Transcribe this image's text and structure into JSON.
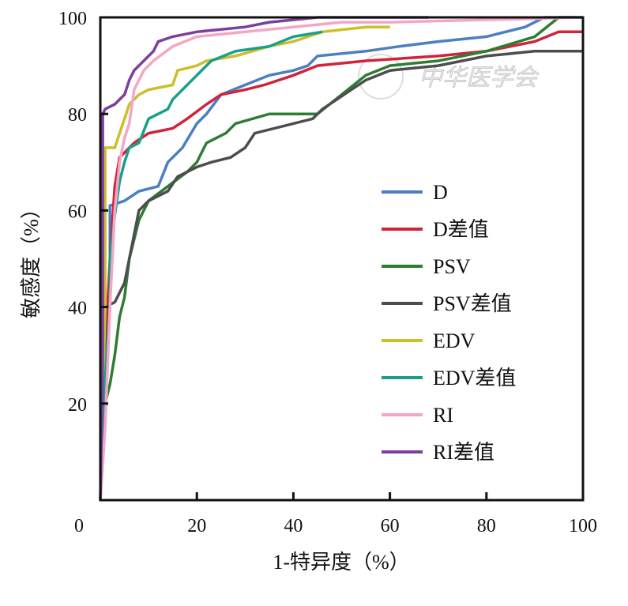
{
  "chart_data": {
    "type": "line",
    "title": "",
    "xlabel": "1-特异度（%）",
    "ylabel": "敏感度（%）",
    "xlim": [
      0,
      100
    ],
    "ylim": [
      0,
      100
    ],
    "xticks": [
      "0",
      "20",
      "40",
      "60",
      "80",
      "100"
    ],
    "yticks": [
      "20",
      "40",
      "60",
      "80",
      "100"
    ],
    "xtick_values": [
      0,
      20,
      40,
      60,
      80,
      100
    ],
    "ytick_values": [
      20,
      40,
      60,
      80,
      100
    ],
    "grid": false,
    "legend_position": "bottom-right",
    "watermark": "中华医学会",
    "series": [
      {
        "name": "D",
        "color": "#4a7fc1",
        "points": [
          [
            0,
            0
          ],
          [
            1,
            20
          ],
          [
            2,
            40
          ],
          [
            2,
            61
          ],
          [
            5,
            62
          ],
          [
            8,
            64
          ],
          [
            12,
            65
          ],
          [
            14,
            70
          ],
          [
            17,
            73
          ],
          [
            20,
            78
          ],
          [
            22,
            80
          ],
          [
            25,
            84
          ],
          [
            30,
            86
          ],
          [
            35,
            88
          ],
          [
            40,
            89
          ],
          [
            43,
            90
          ],
          [
            45,
            92
          ],
          [
            55,
            93
          ],
          [
            62,
            94
          ],
          [
            70,
            95
          ],
          [
            80,
            96
          ],
          [
            88,
            98
          ],
          [
            92,
            100
          ],
          [
            100,
            100
          ]
        ]
      },
      {
        "name": "D差值",
        "color": "#d0243a",
        "points": [
          [
            0,
            0
          ],
          [
            1,
            30
          ],
          [
            2,
            50
          ],
          [
            3,
            65
          ],
          [
            4,
            71
          ],
          [
            5,
            72
          ],
          [
            7,
            74
          ],
          [
            10,
            76
          ],
          [
            15,
            77
          ],
          [
            18,
            79
          ],
          [
            22,
            82
          ],
          [
            25,
            84
          ],
          [
            30,
            85
          ],
          [
            34,
            86
          ],
          [
            40,
            88
          ],
          [
            45,
            90
          ],
          [
            55,
            91
          ],
          [
            70,
            92
          ],
          [
            80,
            93
          ],
          [
            90,
            95
          ],
          [
            95,
            97
          ],
          [
            100,
            97
          ]
        ]
      },
      {
        "name": "PSV",
        "color": "#2e7d32",
        "points": [
          [
            0,
            0
          ],
          [
            1,
            20
          ],
          [
            2,
            24
          ],
          [
            3,
            30
          ],
          [
            4,
            38
          ],
          [
            5,
            42
          ],
          [
            6,
            50
          ],
          [
            8,
            58
          ],
          [
            10,
            62
          ],
          [
            14,
            65
          ],
          [
            18,
            68
          ],
          [
            20,
            70
          ],
          [
            22,
            74
          ],
          [
            26,
            76
          ],
          [
            28,
            78
          ],
          [
            35,
            80
          ],
          [
            45,
            80
          ],
          [
            50,
            84
          ],
          [
            55,
            88
          ],
          [
            60,
            90
          ],
          [
            70,
            91
          ],
          [
            80,
            93
          ],
          [
            90,
            96
          ],
          [
            95,
            100
          ],
          [
            100,
            100
          ]
        ]
      },
      {
        "name": "PSV差值",
        "color": "#4d4d4d",
        "points": [
          [
            0,
            0
          ],
          [
            1,
            16
          ],
          [
            1,
            40
          ],
          [
            3,
            41
          ],
          [
            5,
            45
          ],
          [
            6,
            50
          ],
          [
            7,
            55
          ],
          [
            8,
            60
          ],
          [
            10,
            62
          ],
          [
            14,
            64
          ],
          [
            16,
            67
          ],
          [
            20,
            69
          ],
          [
            23,
            70
          ],
          [
            27,
            71
          ],
          [
            30,
            73
          ],
          [
            32,
            76
          ],
          [
            40,
            78
          ],
          [
            44,
            79
          ],
          [
            46,
            81
          ],
          [
            52,
            85
          ],
          [
            55,
            87
          ],
          [
            60,
            89
          ],
          [
            70,
            90
          ],
          [
            80,
            92
          ],
          [
            90,
            93
          ],
          [
            100,
            93
          ]
        ]
      },
      {
        "name": "EDV",
        "color": "#cdbf2a",
        "points": [
          [
            0,
            0
          ],
          [
            0.5,
            20
          ],
          [
            1,
            40
          ],
          [
            1,
            73
          ],
          [
            3,
            73
          ],
          [
            4,
            76
          ],
          [
            5,
            79
          ],
          [
            6,
            82
          ],
          [
            8,
            84
          ],
          [
            10,
            85
          ],
          [
            15,
            86
          ],
          [
            16,
            89
          ],
          [
            20,
            90
          ],
          [
            22,
            91
          ],
          [
            28,
            92
          ],
          [
            35,
            94
          ],
          [
            40,
            95
          ],
          [
            46,
            97
          ],
          [
            55,
            98
          ],
          [
            60,
            98
          ]
        ]
      },
      {
        "name": "EDV差值",
        "color": "#1aa08a",
        "points": [
          [
            0,
            0
          ],
          [
            1,
            25
          ],
          [
            2,
            40
          ],
          [
            2,
            50
          ],
          [
            3,
            59
          ],
          [
            4,
            66
          ],
          [
            5,
            70
          ],
          [
            6,
            73
          ],
          [
            8,
            74
          ],
          [
            10,
            79
          ],
          [
            14,
            81
          ],
          [
            15,
            83
          ],
          [
            18,
            86
          ],
          [
            20,
            88
          ],
          [
            23,
            91
          ],
          [
            28,
            93
          ],
          [
            35,
            94
          ],
          [
            40,
            96
          ],
          [
            46,
            97
          ]
        ]
      },
      {
        "name": "RI",
        "color": "#f4a6c6",
        "points": [
          [
            0,
            0
          ],
          [
            1,
            15
          ],
          [
            2,
            40
          ],
          [
            3,
            60
          ],
          [
            4,
            70
          ],
          [
            5,
            75
          ],
          [
            6,
            78
          ],
          [
            7,
            85
          ],
          [
            9,
            89
          ],
          [
            11,
            91
          ],
          [
            15,
            94
          ],
          [
            20,
            96
          ],
          [
            30,
            97
          ],
          [
            40,
            98
          ],
          [
            50,
            99
          ],
          [
            60,
            99
          ],
          [
            100,
            100
          ]
        ]
      },
      {
        "name": "RI差值",
        "color": "#7b3f9e",
        "points": [
          [
            0,
            0
          ],
          [
            0.5,
            30
          ],
          [
            0.5,
            80
          ],
          [
            1,
            81
          ],
          [
            3,
            82
          ],
          [
            5,
            84
          ],
          [
            6,
            87
          ],
          [
            7,
            89
          ],
          [
            9,
            91
          ],
          [
            10,
            92
          ],
          [
            11,
            93
          ],
          [
            12,
            95
          ],
          [
            15,
            96
          ],
          [
            20,
            97
          ],
          [
            30,
            98
          ],
          [
            35,
            99
          ],
          [
            45,
            100
          ],
          [
            68,
            100
          ]
        ]
      }
    ]
  }
}
